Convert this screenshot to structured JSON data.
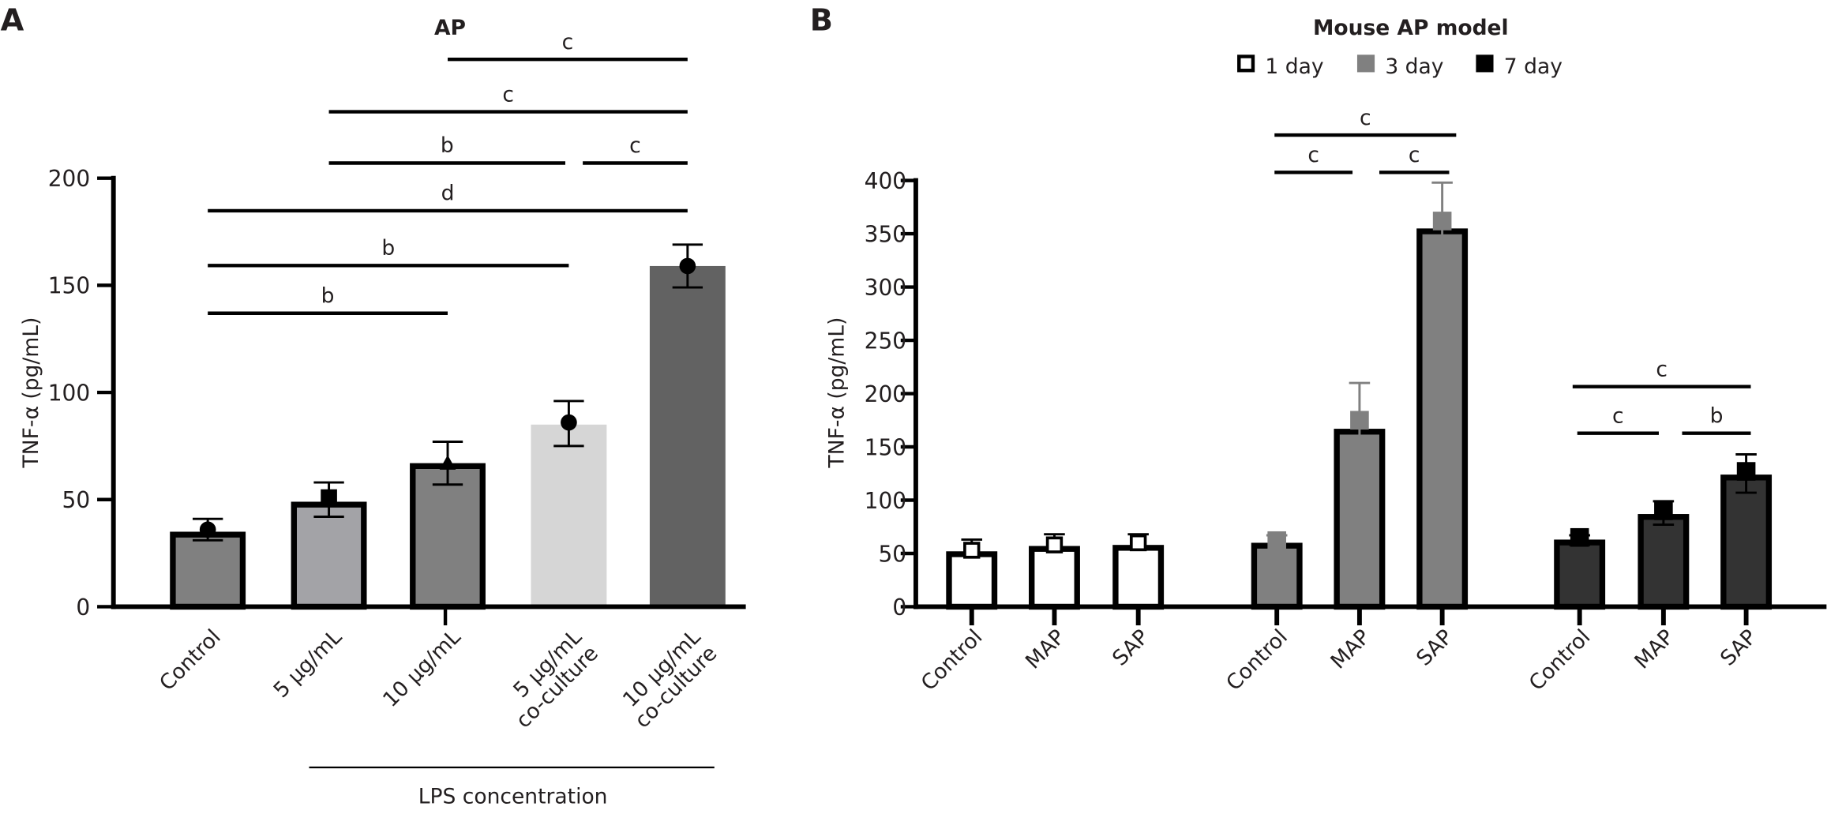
{
  "chart_data": [
    {
      "panel": "A",
      "type": "bar",
      "title": "AP",
      "ylabel": "TNF-α (pg/mL)",
      "xlabel": "LPS concentration",
      "ylim": [
        0,
        200
      ],
      "yticks": [
        0,
        50,
        100,
        150,
        200
      ],
      "categories": [
        "Control",
        "5 µg/mL",
        "10 µg/mL",
        "5 µg/mL\nco-culture",
        "10 µg/mL\nco-culture"
      ],
      "values": [
        35,
        49,
        67,
        85,
        159
      ],
      "error_low": [
        31,
        42,
        57,
        75,
        149
      ],
      "error_high": [
        41,
        58,
        77,
        96,
        169
      ],
      "markers": [
        {
          "shape": "circle",
          "value": 36
        },
        {
          "shape": "square",
          "value": 51
        },
        {
          "shape": "triangle",
          "value": 67
        },
        {
          "shape": "circle",
          "value": 86
        },
        {
          "shape": "circle",
          "value": 159
        }
      ],
      "colors": [
        "#808080",
        "#a3a3a7",
        "#808080",
        "#d6d6d6",
        "#626262"
      ],
      "outlined": [
        true,
        true,
        true,
        false,
        false
      ],
      "significance": [
        {
          "from": 2,
          "to": 4,
          "label": "c"
        },
        {
          "from": 1,
          "to": 4,
          "label": "c"
        },
        {
          "from": 1,
          "to": 3,
          "label": "b"
        },
        {
          "from": 3,
          "to": 4,
          "label": "c"
        },
        {
          "from": 0,
          "to": 4,
          "label": "d"
        },
        {
          "from": 0,
          "to": 3,
          "label": "b"
        },
        {
          "from": 0,
          "to": 2,
          "label": "b"
        }
      ]
    },
    {
      "panel": "B",
      "type": "bar",
      "title": "Mouse AP model",
      "ylabel": "TNF-α (pg/mL)",
      "ylim": [
        0,
        400
      ],
      "yticks": [
        0,
        50,
        100,
        150,
        200,
        250,
        300,
        350,
        400
      ],
      "legend_position": "top",
      "series": [
        {
          "name": "1 day",
          "color": "#ffffff",
          "categories": [
            "Control",
            "MAP",
            "SAP"
          ],
          "values": [
            52,
            57,
            58
          ],
          "error_low": [
            47,
            52,
            54
          ],
          "error_high": [
            63,
            68,
            68
          ],
          "markers": [
            53,
            58,
            60
          ]
        },
        {
          "name": "3 day",
          "color": "#808080",
          "categories": [
            "Control",
            "MAP",
            "SAP"
          ],
          "values": [
            60,
            167,
            355
          ],
          "error_low": [
            55,
            140,
            330
          ],
          "error_high": [
            67,
            210,
            398
          ],
          "markers": [
            62,
            175,
            362
          ]
        },
        {
          "name": "7 day",
          "color": "#333333",
          "categories": [
            "Control",
            "MAP",
            "SAP"
          ],
          "values": [
            63,
            87,
            124
          ],
          "error_low": [
            58,
            77,
            107
          ],
          "error_high": [
            67,
            99,
            143
          ],
          "markers": [
            65,
            90,
            127
          ]
        }
      ],
      "significance": [
        {
          "series": 1,
          "from": 0,
          "to": 2,
          "label": "c"
        },
        {
          "series": 1,
          "from": 0,
          "to": 1,
          "label": "c"
        },
        {
          "series": 1,
          "from": 1,
          "to": 2,
          "label": "c"
        },
        {
          "series": 2,
          "from": 0,
          "to": 2,
          "label": "c"
        },
        {
          "series": 2,
          "from": 0,
          "to": 1,
          "label": "c"
        },
        {
          "series": 2,
          "from": 1,
          "to": 2,
          "label": "b"
        }
      ]
    }
  ]
}
